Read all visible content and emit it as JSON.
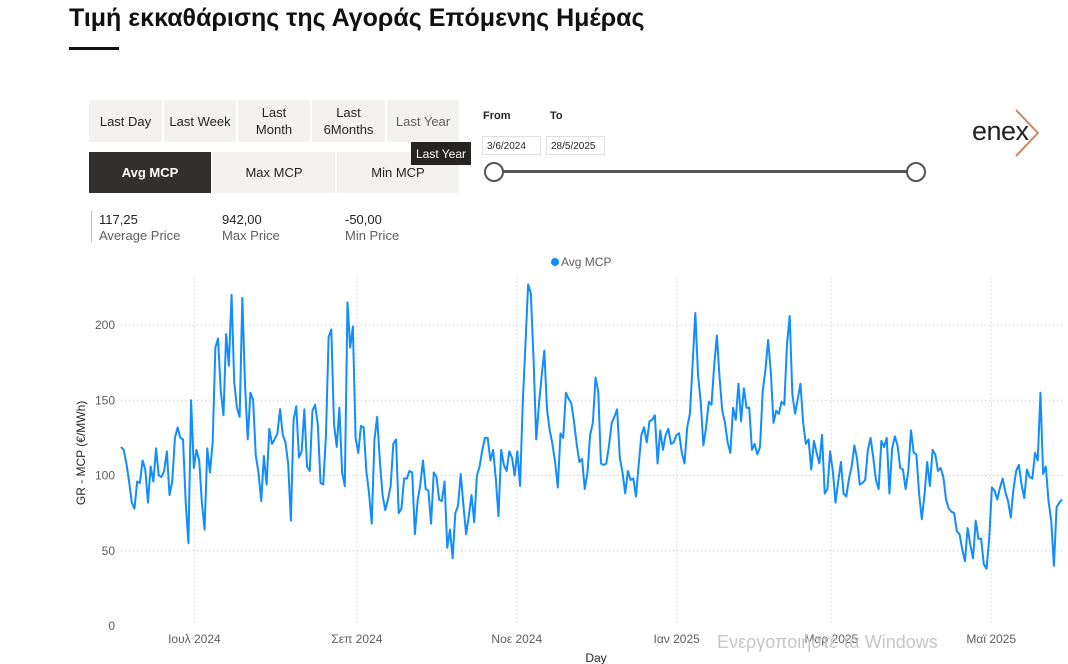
{
  "page": {
    "title": "Τιμή εκκαθάρισης της Αγοράς Επόμενης Ημέρας"
  },
  "period_buttons": [
    {
      "label": "Last Day"
    },
    {
      "label": "Last Week"
    },
    {
      "label": "Last\nMonth"
    },
    {
      "label": "Last\n6Months"
    },
    {
      "label": "Last Year"
    }
  ],
  "tooltip": "Last Year",
  "measure_buttons": [
    {
      "label": "Avg MCP",
      "active": true
    },
    {
      "label": "Max MCP",
      "active": false
    },
    {
      "label": "Min MCP",
      "active": false
    }
  ],
  "date_range": {
    "from_label": "From",
    "to_label": "To",
    "from_value": "3/6/2024",
    "to_value": "28/5/2025"
  },
  "logo": {
    "text": "enex",
    "accent_color": "#c98b6b"
  },
  "stats": [
    {
      "value": "117,25",
      "label": "Average Price"
    },
    {
      "value": "942,00",
      "label": "Max Price"
    },
    {
      "value": "-50,00",
      "label": "Min Price"
    }
  ],
  "watermark": "Ενεργοποιήστε τα Windows",
  "chart_data": {
    "type": "line",
    "xlabel": "Day",
    "ylabel": "GR - MCP (€/MWh)",
    "ylim": [
      0,
      230
    ],
    "yticks": [
      0,
      50,
      100,
      150,
      200
    ],
    "x_start": "2024-06-03",
    "x_end": "2025-05-28",
    "x_tick_labels": [
      {
        "label": "Ιουλ 2024",
        "date": "2024-07-01"
      },
      {
        "label": "Σεπ 2024",
        "date": "2024-09-01"
      },
      {
        "label": "Νοε 2024",
        "date": "2024-11-01"
      },
      {
        "label": "Ιαν 2025",
        "date": "2025-01-01"
      },
      {
        "label": "Μαρ 2025",
        "date": "2025-03-01"
      },
      {
        "label": "Μαϊ 2025",
        "date": "2025-05-01"
      }
    ],
    "legend_position": "top-center",
    "grid": true,
    "series": [
      {
        "name": "Avg MCP",
        "color": "#118dff",
        "values": [
          119,
          117,
          108,
          96,
          82,
          78,
          96,
          95,
          110,
          104,
          82,
          106,
          96,
          118,
          100,
          99,
          103,
          116,
          87,
          96,
          125,
          132,
          125,
          124,
          82,
          55,
          150,
          105,
          117,
          110,
          82,
          64,
          118,
          102,
          122,
          185,
          191,
          156,
          140,
          194,
          173,
          220,
          162,
          145,
          139,
          218,
          160,
          124,
          155,
          150,
          113,
          102,
          83,
          113,
          94,
          131,
          121,
          124,
          128,
          144,
          127,
          122,
          108,
          70,
          137,
          146,
          112,
          116,
          144,
          106,
          103,
          143,
          147,
          134,
          95,
          94,
          126,
          192,
          197,
          134,
          119,
          145,
          102,
          93,
          215,
          185,
          199,
          125,
          115,
          133,
          132,
          103,
          88,
          68,
          124,
          139,
          110,
          87,
          77,
          84,
          93,
          121,
          124,
          75,
          78,
          98,
          98,
          103,
          102,
          61,
          83,
          94,
          110,
          91,
          90,
          68,
          102,
          99,
          84,
          83,
          96,
          52,
          64,
          45,
          75,
          80,
          101,
          80,
          61,
          73,
          87,
          69,
          100,
          106,
          117,
          125,
          125,
          110,
          117,
          98,
          73,
          117,
          107,
          103,
          116,
          112,
          100,
          116,
          93,
          148,
          187,
          227,
          221,
          178,
          124,
          147,
          166,
          183,
          144,
          130,
          121,
          109,
          92,
          128,
          125,
          155,
          151,
          148,
          136,
          121,
          109,
          111,
          91,
          102,
          127,
          135,
          165,
          156,
          108,
          107,
          108,
          120,
          135,
          139,
          144,
          112,
          102,
          88,
          103,
          97,
          98,
          86,
          107,
          127,
          132,
          122,
          136,
          137,
          140,
          108,
          130,
          117,
          127,
          131,
          121,
          122,
          127,
          128,
          115,
          108,
          132,
          141,
          174,
          208,
          167,
          149,
          120,
          132,
          149,
          147,
          173,
          193,
          165,
          143,
          135,
          122,
          115,
          145,
          137,
          161,
          136,
          158,
          145,
          145,
          117,
          121,
          114,
          119,
          156,
          170,
          190,
          169,
          135,
          143,
          141,
          149,
          147,
          187,
          206,
          154,
          141,
          151,
          161,
          135,
          121,
          124,
          104,
          123,
          115,
          108,
          127,
          88,
          91,
          116,
          103,
          82,
          96,
          109,
          88,
          86,
          98,
          106,
          120,
          111,
          94,
          95,
          97,
          117,
          125,
          112,
          97,
          91,
          123,
          119,
          125,
          88,
          118,
          126,
          120,
          105,
          104,
          91,
          103,
          130,
          115,
          114,
          88,
          71,
          87,
          109,
          93,
          117,
          114,
          103,
          105,
          99,
          84,
          78,
          76,
          75,
          63,
          61,
          51,
          43,
          65,
          54,
          45,
          70,
          58,
          58,
          41,
          38,
          58,
          92,
          90,
          84,
          92,
          98,
          89,
          83,
          72,
          91,
          103,
          107,
          94,
          85,
          104,
          99,
          98,
          115,
          110,
          155,
          101,
          106,
          83,
          70,
          40,
          79,
          82,
          84
        ]
      }
    ]
  }
}
